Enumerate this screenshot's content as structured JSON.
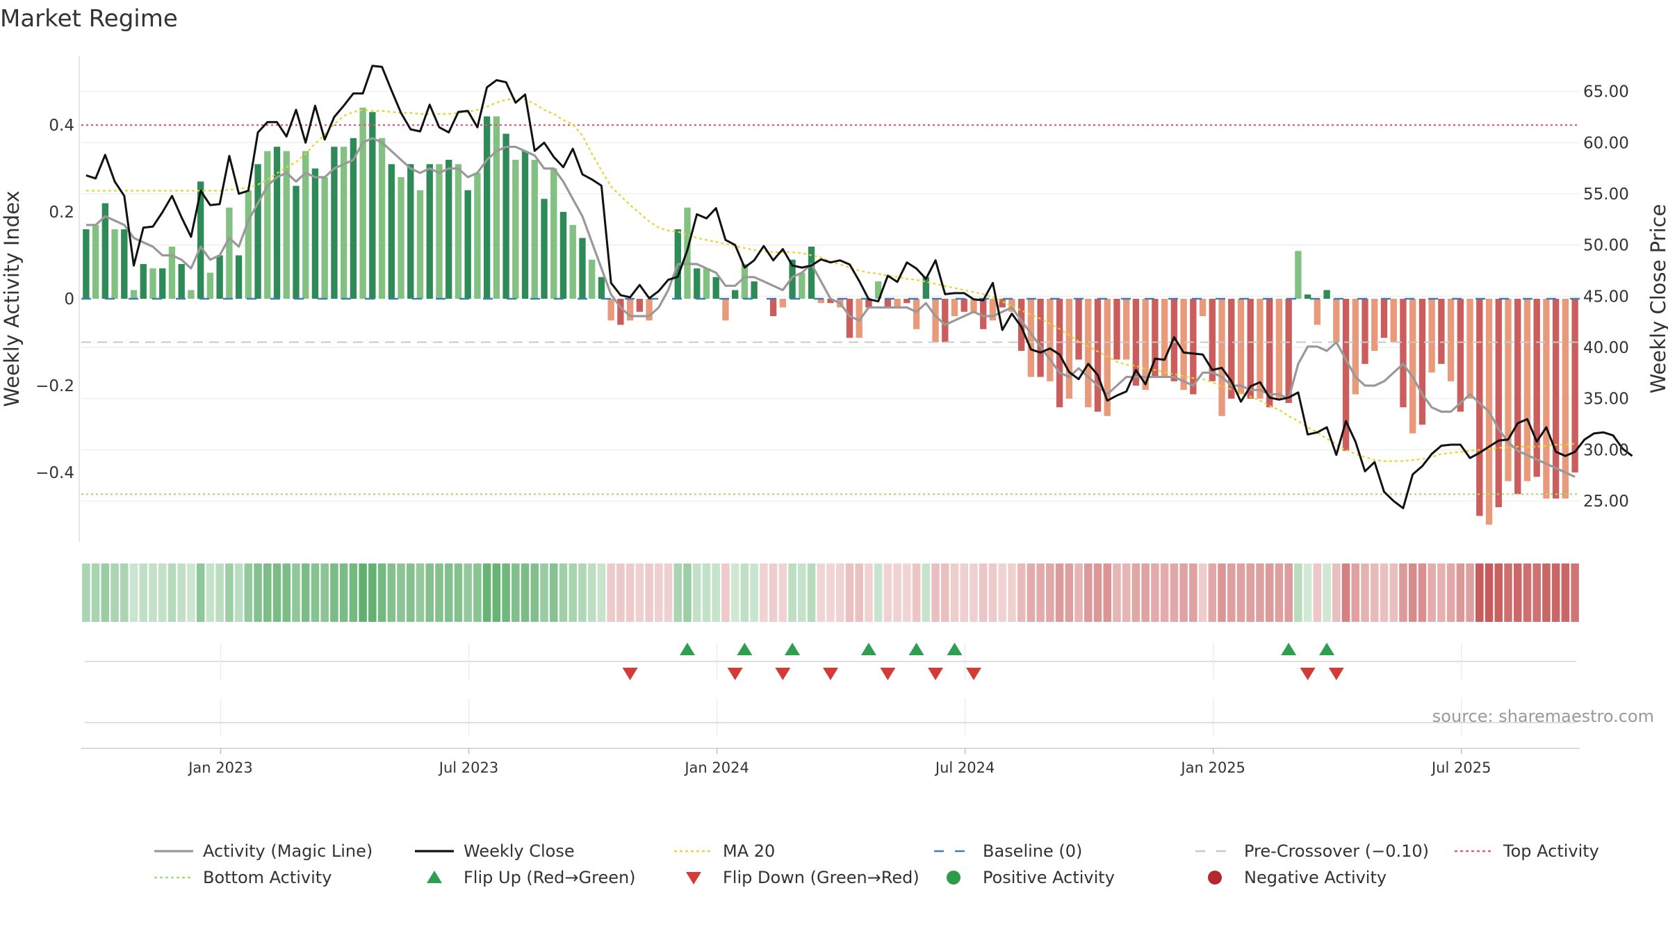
{
  "chart_data": {
    "type": "bar",
    "title": "Market Regime",
    "ylabel": "Weekly Activity Index",
    "y2label": "Weekly Close Price",
    "source": "source: sharemaestro.com",
    "ylim": [
      -0.56,
      0.56
    ],
    "y2lim": [
      21.0,
      68.5
    ],
    "y_ticks": [
      0.4,
      0.2,
      0,
      -0.2,
      -0.4
    ],
    "y_tick_labels": [
      "0.4",
      "0.2",
      "0",
      "−0.2",
      "−0.4"
    ],
    "y2_ticks": [
      65,
      60,
      55,
      50,
      45,
      40,
      35,
      30,
      25
    ],
    "y2_tick_labels": [
      "65.00",
      "60.00",
      "55.00",
      "50.00",
      "45.00",
      "40.00",
      "35.00",
      "30.00",
      "25.00"
    ],
    "x_tick_labels": [
      "Jan 2023",
      "Jul 2023",
      "Jan 2024",
      "Jul 2024",
      "Jan 2025",
      "Jul 2025"
    ],
    "x_tick_weeks": [
      14.6,
      40.6,
      66.6,
      92.6,
      118.6,
      144.6
    ],
    "weeks": 157,
    "top_activity": 0.4,
    "bottom_activity": -0.45,
    "pre_crossover": -0.1,
    "baseline": 0,
    "activity": [
      0.16,
      0.17,
      0.22,
      0.16,
      0.16,
      0.02,
      0.08,
      0.07,
      0.07,
      0.12,
      0.08,
      0.02,
      0.27,
      0.06,
      0.1,
      0.21,
      0.1,
      0.25,
      0.31,
      0.34,
      0.35,
      0.34,
      0.26,
      0.34,
      0.3,
      0.28,
      0.35,
      0.35,
      0.37,
      0.44,
      0.43,
      0.37,
      0.31,
      0.28,
      0.31,
      0.25,
      0.31,
      0.31,
      0.32,
      0.31,
      0.25,
      0.29,
      0.42,
      0.42,
      0.38,
      0.32,
      0.34,
      0.32,
      0.23,
      0.3,
      0.2,
      0.17,
      0.14,
      0.09,
      0.05,
      -0.05,
      -0.06,
      -0.05,
      -0.03,
      -0.05,
      0.0,
      0.0,
      0.16,
      0.21,
      0.07,
      0.07,
      0.05,
      -0.05,
      0.02,
      0.08,
      0.04,
      0.0,
      -0.04,
      -0.02,
      0.09,
      0.06,
      0.12,
      -0.01,
      -0.01,
      -0.02,
      -0.09,
      -0.09,
      -0.02,
      0.04,
      -0.02,
      -0.02,
      -0.01,
      -0.07,
      0.05,
      -0.1,
      -0.1,
      -0.04,
      -0.03,
      -0.03,
      -0.07,
      -0.05,
      -0.02,
      -0.03,
      -0.12,
      -0.18,
      -0.18,
      -0.19,
      -0.25,
      -0.23,
      -0.14,
      -0.25,
      -0.26,
      -0.27,
      -0.14,
      -0.14,
      -0.2,
      -0.21,
      -0.18,
      -0.18,
      -0.19,
      -0.21,
      -0.22,
      -0.04,
      -0.19,
      -0.27,
      -0.23,
      -0.22,
      -0.23,
      -0.23,
      -0.25,
      -0.23,
      -0.24,
      0.11,
      0.01,
      -0.06,
      0.02,
      -0.1,
      -0.35,
      -0.22,
      -0.15,
      -0.12,
      -0.09,
      -0.1,
      -0.25,
      -0.31,
      -0.29,
      -0.17,
      -0.15,
      -0.19,
      -0.26,
      -0.23,
      -0.5,
      -0.52,
      -0.48,
      -0.42,
      -0.45,
      -0.42,
      -0.41,
      -0.46,
      -0.46,
      -0.46,
      -0.4
    ],
    "shade_levels": [
      0.16,
      0.17,
      0.22,
      0.16,
      0.16,
      0.04,
      0.08,
      0.07,
      0.07,
      0.12,
      0.08,
      0.03,
      0.27,
      0.06,
      0.1,
      0.21,
      0.1,
      0.25,
      0.31,
      0.34,
      0.35,
      0.34,
      0.26,
      0.34,
      0.3,
      0.28,
      0.35,
      0.35,
      0.37,
      0.44,
      0.43,
      0.37,
      0.31,
      0.28,
      0.31,
      0.25,
      0.31,
      0.31,
      0.32,
      0.31,
      0.25,
      0.29,
      0.42,
      0.42,
      0.38,
      0.32,
      0.34,
      0.32,
      0.23,
      0.3,
      0.2,
      0.17,
      0.14,
      0.09,
      0.05,
      -0.05,
      -0.06,
      -0.05,
      -0.03,
      -0.05,
      -0.03,
      -0.03,
      0.16,
      0.21,
      0.07,
      0.07,
      0.05,
      -0.05,
      0.02,
      0.08,
      0.04,
      -0.02,
      -0.04,
      -0.02,
      0.09,
      0.06,
      0.12,
      -0.01,
      -0.01,
      -0.02,
      -0.09,
      -0.09,
      -0.02,
      0.04,
      -0.02,
      -0.02,
      -0.01,
      -0.07,
      0.05,
      -0.1,
      -0.1,
      -0.04,
      -0.03,
      -0.03,
      -0.07,
      -0.05,
      -0.02,
      -0.03,
      -0.12,
      -0.18,
      -0.18,
      -0.19,
      -0.25,
      -0.23,
      -0.14,
      -0.25,
      -0.26,
      -0.27,
      -0.14,
      -0.14,
      -0.2,
      -0.21,
      -0.18,
      -0.18,
      -0.19,
      -0.21,
      -0.22,
      -0.04,
      -0.19,
      -0.27,
      -0.23,
      -0.22,
      -0.23,
      -0.23,
      -0.25,
      -0.23,
      -0.24,
      0.11,
      0.01,
      -0.06,
      0.02,
      -0.1,
      -0.35,
      -0.22,
      -0.15,
      -0.12,
      -0.09,
      -0.1,
      -0.25,
      -0.31,
      -0.29,
      -0.17,
      -0.15,
      -0.19,
      -0.26,
      -0.23,
      -0.5,
      -0.52,
      -0.48,
      -0.42,
      -0.45,
      -0.42,
      -0.41,
      -0.46,
      -0.46,
      -0.46,
      -0.4
    ],
    "magic_line": [
      0.17,
      0.17,
      0.19,
      0.18,
      0.17,
      0.14,
      0.13,
      0.12,
      0.1,
      0.1,
      0.09,
      0.07,
      0.12,
      0.09,
      0.1,
      0.14,
      0.12,
      0.18,
      0.22,
      0.26,
      0.28,
      0.29,
      0.27,
      0.29,
      0.28,
      0.28,
      0.3,
      0.31,
      0.32,
      0.36,
      0.37,
      0.36,
      0.34,
      0.32,
      0.3,
      0.29,
      0.3,
      0.29,
      0.3,
      0.3,
      0.28,
      0.29,
      0.32,
      0.34,
      0.35,
      0.35,
      0.34,
      0.33,
      0.3,
      0.3,
      0.27,
      0.23,
      0.19,
      0.13,
      0.07,
      0.01,
      -0.02,
      -0.04,
      -0.04,
      -0.04,
      -0.02,
      0.02,
      0.08,
      0.08,
      0.08,
      0.07,
      0.06,
      0.03,
      0.03,
      0.05,
      0.05,
      0.04,
      0.03,
      0.02,
      0.05,
      0.06,
      0.08,
      0.04,
      0.0,
      -0.01,
      -0.04,
      -0.05,
      -0.02,
      -0.02,
      -0.02,
      -0.02,
      -0.02,
      -0.03,
      -0.01,
      -0.04,
      -0.06,
      -0.05,
      -0.04,
      -0.03,
      -0.04,
      -0.04,
      -0.03,
      -0.02,
      -0.05,
      -0.08,
      -0.11,
      -0.14,
      -0.17,
      -0.18,
      -0.16,
      -0.18,
      -0.2,
      -0.22,
      -0.2,
      -0.18,
      -0.18,
      -0.18,
      -0.18,
      -0.18,
      -0.18,
      -0.19,
      -0.2,
      -0.17,
      -0.17,
      -0.18,
      -0.2,
      -0.2,
      -0.21,
      -0.21,
      -0.22,
      -0.22,
      -0.23,
      -0.15,
      -0.11,
      -0.11,
      -0.12,
      -0.1,
      -0.14,
      -0.18,
      -0.2,
      -0.2,
      -0.19,
      -0.17,
      -0.15,
      -0.18,
      -0.22,
      -0.25,
      -0.26,
      -0.26,
      -0.24,
      -0.22,
      -0.24,
      -0.26,
      -0.3,
      -0.33,
      -0.35,
      -0.36,
      -0.37,
      -0.38,
      -0.39,
      -0.4,
      -0.41
    ],
    "weekly_close": [
      56.8,
      56.5,
      58.8,
      56.2,
      54.8,
      48.0,
      51.7,
      51.8,
      53.2,
      54.8,
      52.7,
      50.8,
      55.3,
      53.9,
      54.0,
      58.7,
      55.0,
      55.3,
      61.0,
      62.0,
      62.0,
      60.6,
      63.2,
      60.0,
      63.6,
      60.3,
      62.5,
      63.6,
      64.8,
      64.8,
      67.5,
      67.4,
      65.1,
      62.9,
      61.3,
      61.1,
      63.7,
      61.5,
      61.0,
      63.0,
      63.1,
      61.5,
      65.4,
      66.1,
      65.9,
      63.9,
      64.7,
      59.2,
      60.0,
      58.6,
      57.6,
      59.4,
      56.9,
      56.4,
      55.8,
      46.3,
      45.1,
      44.9,
      46.1,
      44.8,
      45.5,
      46.6,
      46.9,
      49.5,
      53.0,
      52.6,
      53.6,
      50.5,
      50.0,
      47.8,
      48.5,
      49.9,
      48.5,
      49.6,
      48.0,
      47.8,
      48.0,
      48.6,
      48.3,
      48.5,
      48.1,
      46.5,
      44.7,
      44.5,
      47.0,
      46.4,
      48.3,
      47.7,
      46.7,
      48.5,
      45.2,
      45.3,
      45.3,
      44.7,
      44.6,
      46.3,
      41.7,
      43.3,
      42.0,
      39.8,
      39.5,
      39.9,
      39.3,
      37.6,
      36.9,
      38.4,
      37.3,
      34.8,
      35.3,
      35.7,
      37.8,
      36.4,
      38.9,
      38.8,
      41.0,
      39.5,
      39.4,
      39.3,
      37.8,
      38.0,
      36.7,
      34.7,
      36.2,
      36.6,
      35.1,
      34.9,
      35.1,
      35.6,
      31.5,
      31.7,
      32.2,
      29.5,
      32.8,
      30.8,
      27.9,
      28.8,
      25.9,
      25.0,
      24.3,
      27.6,
      28.4,
      29.6,
      30.4,
      30.5,
      30.5,
      29.2,
      29.7,
      30.3,
      30.9,
      31.0,
      32.6,
      33.0,
      30.8,
      32.2,
      29.8,
      29.4,
      29.8,
      31.0,
      31.6,
      31.7,
      31.4,
      30.1,
      29.4
    ],
    "ma20": [
      55.3,
      55.3,
      55.3,
      55.3,
      55.3,
      55.3,
      55.3,
      55.3,
      55.3,
      55.3,
      55.3,
      55.3,
      55.3,
      55.3,
      55.3,
      55.4,
      55.5,
      55.6,
      55.9,
      56.4,
      57.0,
      57.6,
      58.1,
      58.9,
      59.9,
      60.8,
      61.8,
      62.6,
      63.0,
      63.2,
      63.1,
      63.1,
      63.0,
      62.9,
      62.9,
      62.8,
      62.8,
      62.8,
      62.8,
      62.9,
      63.0,
      63.2,
      63.5,
      63.9,
      64.2,
      64.3,
      64.2,
      63.8,
      63.2,
      62.8,
      62.2,
      61.8,
      60.7,
      58.9,
      57.3,
      55.7,
      54.8,
      53.9,
      53.1,
      52.3,
      51.7,
      51.4,
      51.3,
      51.0,
      50.7,
      50.5,
      50.3,
      50.1,
      49.9,
      49.7,
      49.5,
      49.4,
      49.3,
      49.3,
      49.3,
      49.2,
      49.0,
      48.8,
      48.4,
      48.1,
      47.8,
      47.5,
      47.3,
      47.2,
      47.0,
      46.9,
      46.7,
      46.6,
      46.4,
      46.2,
      46.0,
      45.8,
      45.6,
      45.4,
      45.2,
      44.9,
      44.5,
      44.0,
      43.6,
      43.2,
      42.8,
      42.3,
      41.8,
      41.2,
      40.6,
      40.1,
      39.6,
      39.1,
      38.6,
      38.3,
      38.2,
      37.9,
      37.8,
      37.6,
      37.4,
      37.2,
      37.0,
      36.9,
      36.6,
      36.2,
      35.9,
      35.5,
      35.2,
      34.8,
      34.3,
      33.9,
      33.3,
      32.8,
      32.2,
      31.7,
      31.1,
      30.5,
      30.0,
      29.6,
      29.3,
      29.0,
      28.9,
      28.9,
      28.9,
      29.0,
      29.1,
      29.3,
      29.6,
      29.7,
      29.8,
      29.9,
      30.0,
      30.1,
      30.2,
      30.2,
      30.3,
      30.3,
      30.3,
      30.4,
      30.5,
      30.5,
      30.6
    ],
    "flip_up_weeks": [
      63,
      69,
      74,
      82,
      87,
      91,
      126,
      130
    ],
    "flip_down_weeks": [
      57,
      68,
      73,
      78,
      84,
      89,
      93,
      128,
      131
    ],
    "legend": [
      {
        "label": "Activity (Magic Line)",
        "kind": "solid",
        "color": "#999999"
      },
      {
        "label": "Weekly Close",
        "kind": "solid",
        "color": "#111111"
      },
      {
        "label": "MA 20",
        "kind": "dotted",
        "color": "#e8d32f"
      },
      {
        "label": "Baseline (0)",
        "kind": "dashed",
        "color": "#3a7fb5"
      },
      {
        "label": "Pre-Crossover (−0.10)",
        "kind": "dashed",
        "color": "#c8c8c8"
      },
      {
        "label": "Top Activity",
        "kind": "dotted",
        "color": "#e8557a"
      },
      {
        "label": "Bottom Activity",
        "kind": "dotted",
        "color": "#a8db7e"
      },
      {
        "label": "Flip Up (Red→Green)",
        "kind": "triangle-up",
        "color": "#2e9e4f"
      },
      {
        "label": "Flip Down (Green→Red)",
        "kind": "triangle-down",
        "color": "#d33b37"
      },
      {
        "label": "Positive Activity",
        "kind": "circle",
        "color": "#2f9a48"
      },
      {
        "label": "Negative Activity",
        "kind": "circle",
        "color": "#b5282f"
      }
    ],
    "colors": {
      "pos_dark": "#2e8b57",
      "pos_light": "#82c181",
      "neg_dark": "#cb5e5c",
      "neg_light": "#e99a7b",
      "flip_up": "#2e9e4f",
      "flip_down": "#d33b37"
    }
  }
}
